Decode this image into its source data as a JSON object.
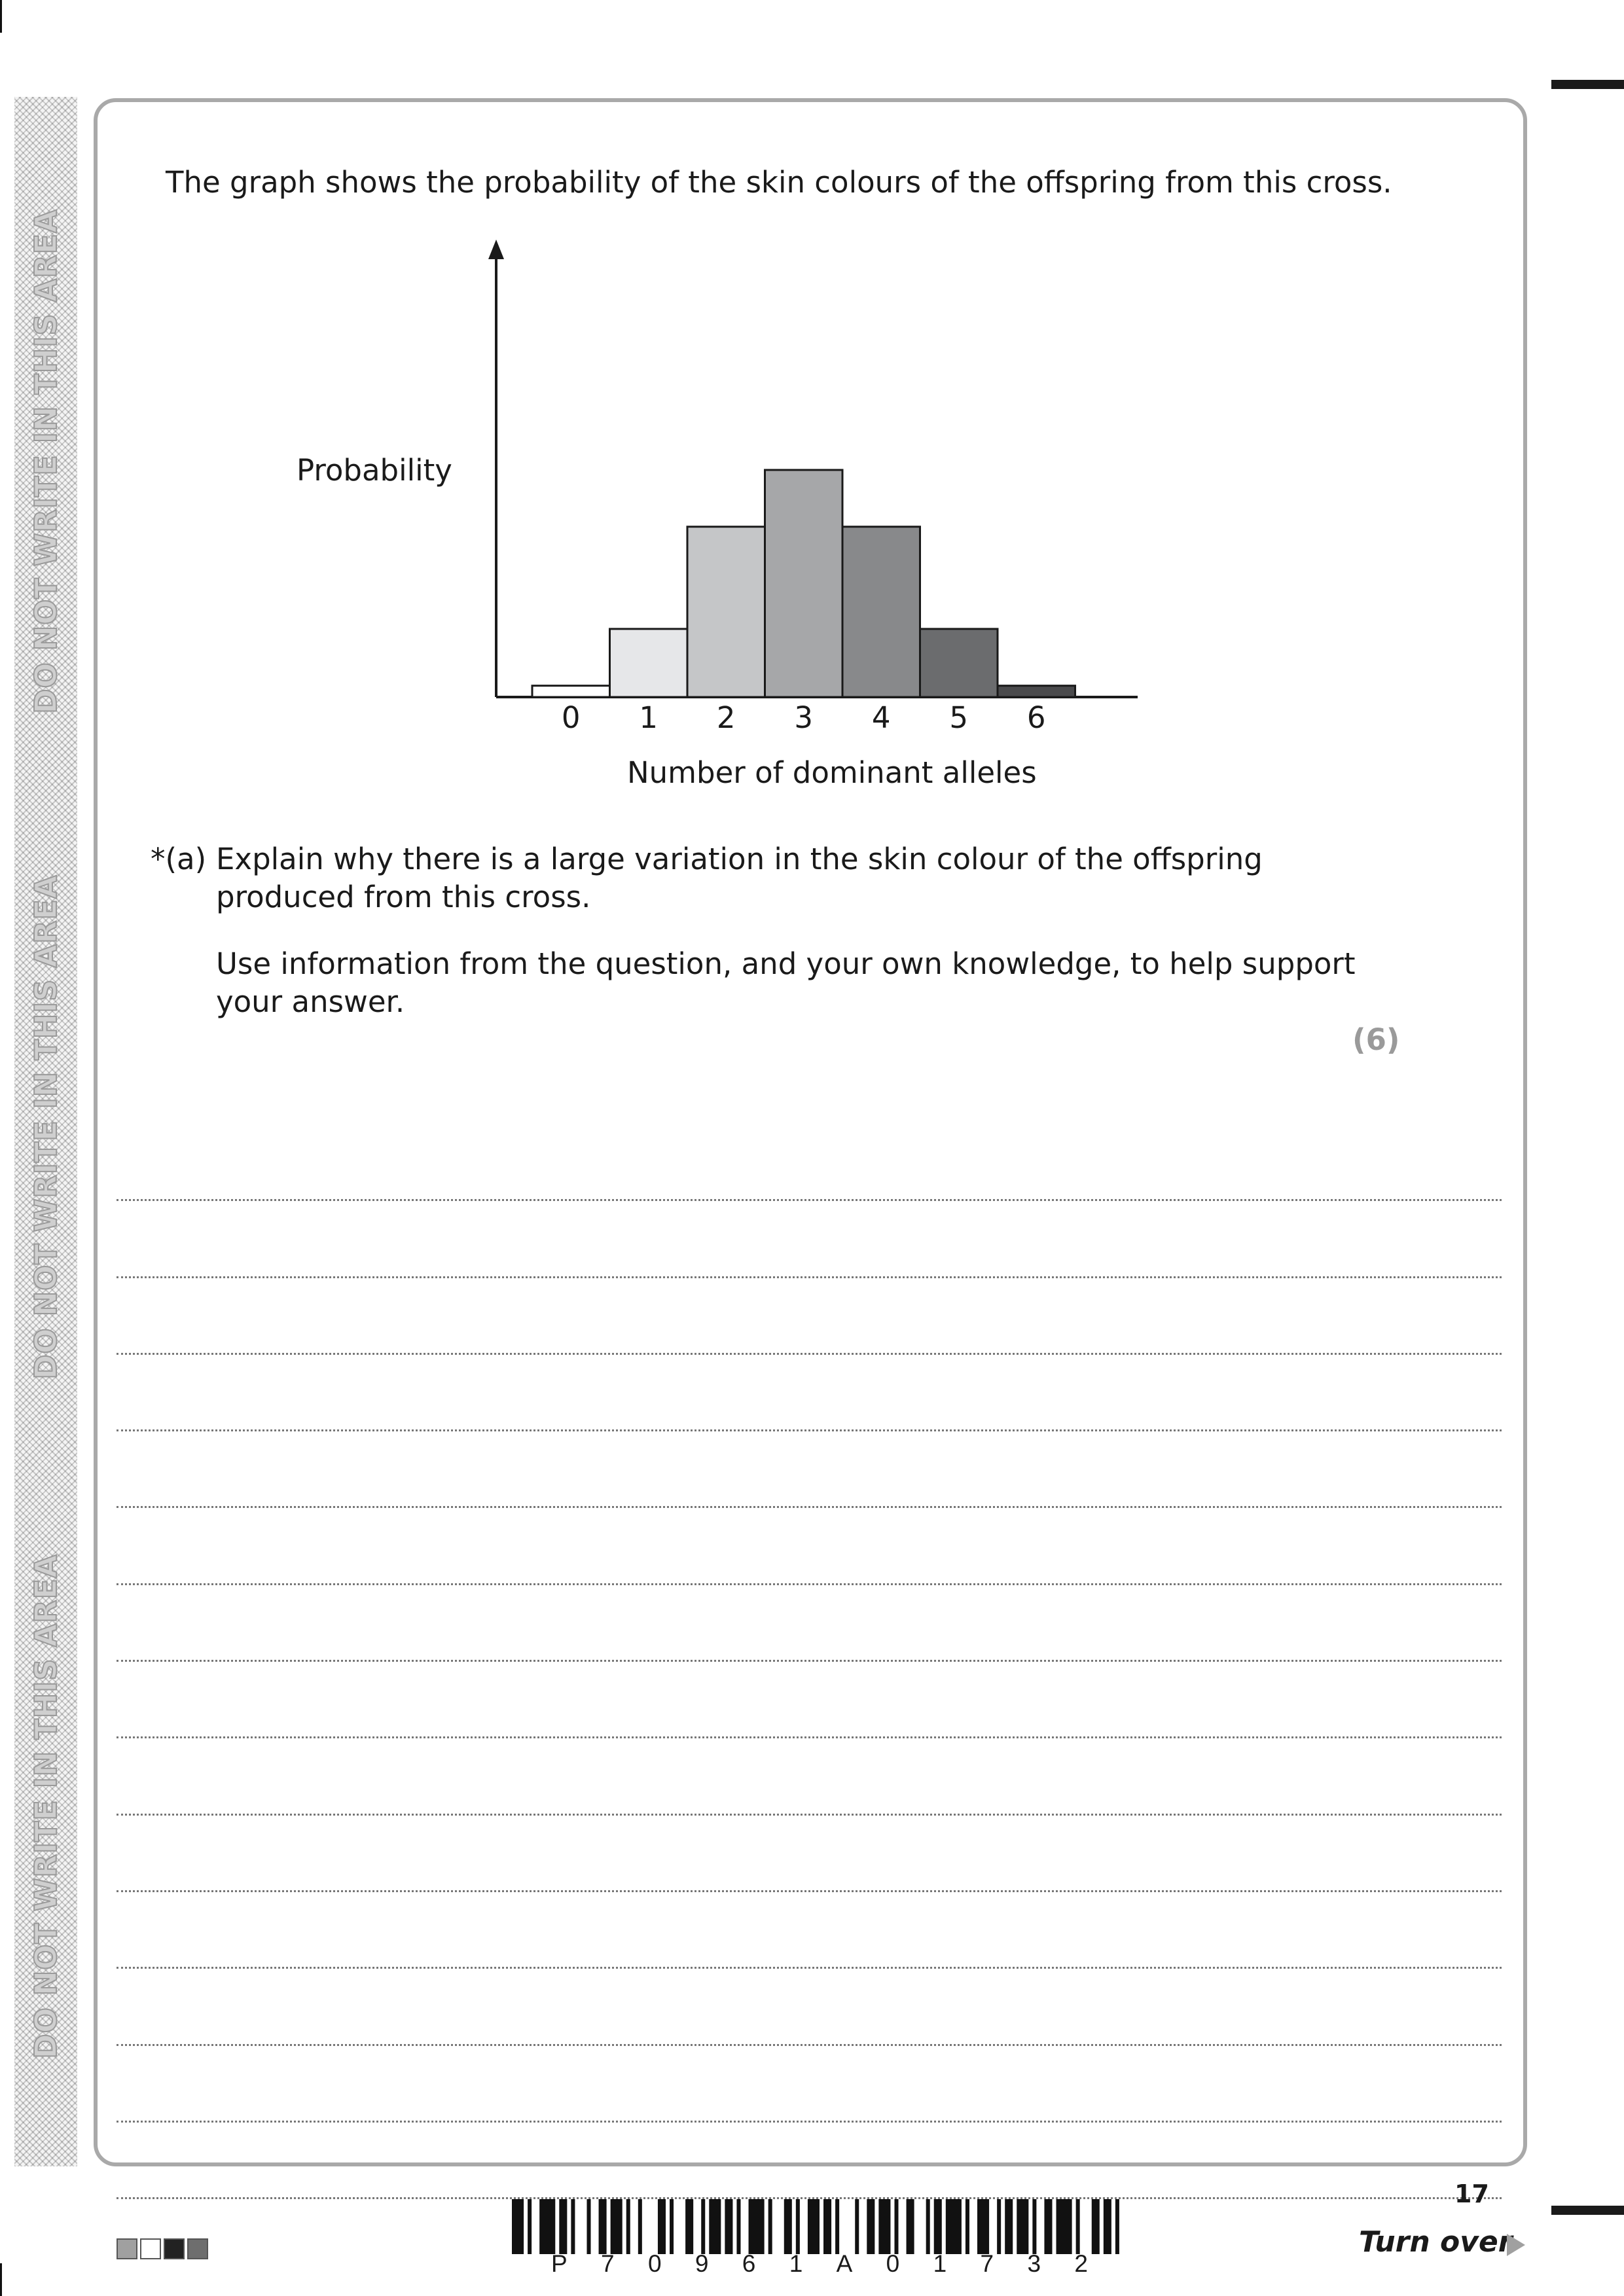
{
  "intro": "The graph shows the probability of the skin colours of the offspring from this cross.",
  "margin_warning": [
    "DO NOT WRITE IN THIS AREA",
    "DO NOT WRITE IN THIS AREA",
    "DO NOT WRITE IN THIS AREA"
  ],
  "chart_data": {
    "type": "bar",
    "title": "",
    "xlabel": "Number of dominant alleles",
    "ylabel": "Probability",
    "categories": [
      "0",
      "1",
      "2",
      "3",
      "4",
      "5",
      "6"
    ],
    "values": [
      1,
      6,
      15,
      20,
      15,
      6,
      1
    ],
    "bar_colors": [
      "#ffffff",
      "#e6e7e9",
      "#c5c6c8",
      "#a6a7a9",
      "#88898b",
      "#6b6c6e",
      "#4a4a4c"
    ],
    "y_axis_ticks": false,
    "grid": false,
    "legend": "none"
  },
  "question": {
    "number": "*(a)",
    "line1": "Explain why there is a large variation in the skin colour of the offspring produced from this cross.",
    "line2": "Use information from the question, and your own knowledge, to help support your answer.",
    "marks": "(6)"
  },
  "answer_line_count": 14,
  "footer": {
    "page_number": "17",
    "turn_over": "Turn over",
    "barcode_text": [
      "P",
      "7",
      "0",
      "9",
      "6",
      "1",
      "A",
      "0",
      "1",
      "7",
      "3",
      "2"
    ],
    "square_colors": [
      "#a0a0a0",
      "#ffffff",
      "#222222",
      "#6e6e6e"
    ]
  }
}
